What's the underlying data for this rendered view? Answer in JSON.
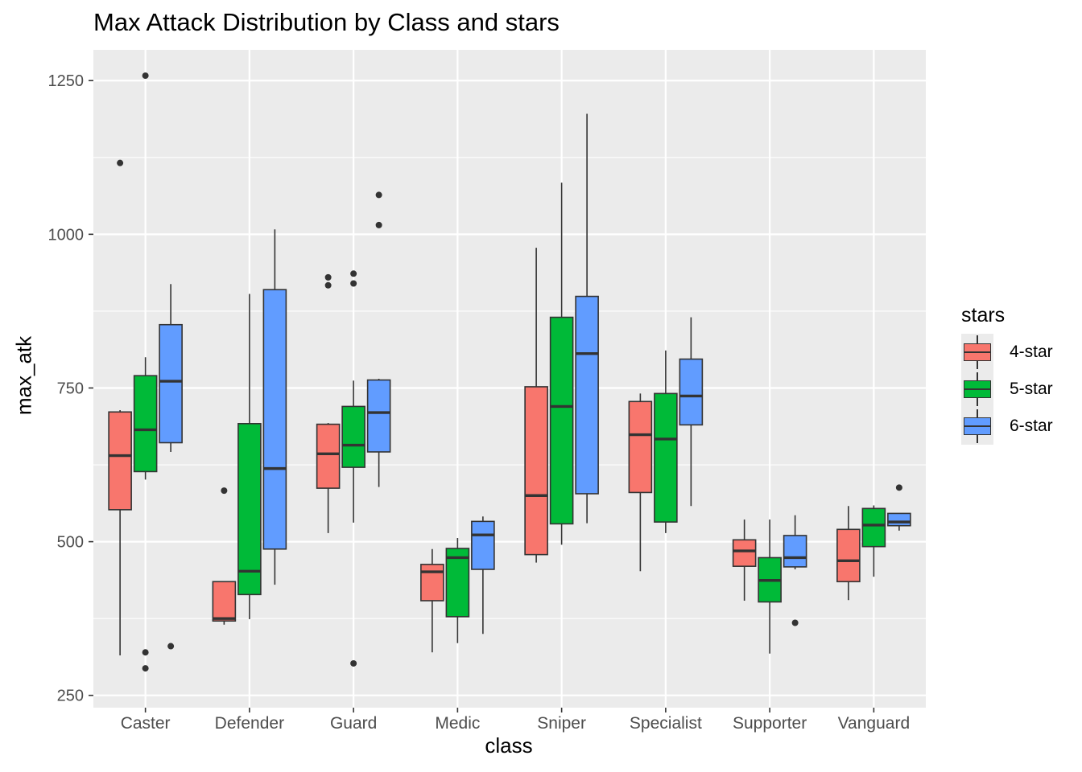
{
  "chart_data": {
    "type": "boxplot",
    "title": "Max Attack Distribution by Class and stars",
    "xlabel": "class",
    "ylabel": "max_atk",
    "ylim": [
      230,
      1300
    ],
    "yticks": [
      250,
      500,
      750,
      1000,
      1250
    ],
    "grid": true,
    "legend_position": "right",
    "legend_title": "stars",
    "categories": [
      "Caster",
      "Defender",
      "Guard",
      "Medic",
      "Sniper",
      "Specialist",
      "Supporter",
      "Vanguard"
    ],
    "series": [
      {
        "name": "4-star",
        "color": "#F8766D",
        "boxes": [
          {
            "class": "Caster",
            "lower_whisker": 315,
            "q1": 552,
            "median": 640,
            "q3": 711,
            "upper_whisker": 714,
            "outliers": [
              1116
            ]
          },
          {
            "class": "Defender",
            "lower_whisker": 365,
            "q1": 371,
            "median": 375,
            "q3": 435,
            "upper_whisker": 435,
            "outliers": [
              583
            ]
          },
          {
            "class": "Guard",
            "lower_whisker": 514,
            "q1": 587,
            "median": 643,
            "q3": 691,
            "upper_whisker": 693,
            "outliers": [
              917,
              930
            ]
          },
          {
            "class": "Medic",
            "lower_whisker": 320,
            "q1": 404,
            "median": 451,
            "q3": 463,
            "upper_whisker": 488,
            "outliers": []
          },
          {
            "class": "Sniper",
            "lower_whisker": 466,
            "q1": 479,
            "median": 575,
            "q3": 752,
            "upper_whisker": 978,
            "outliers": []
          },
          {
            "class": "Specialist",
            "lower_whisker": 452,
            "q1": 580,
            "median": 674,
            "q3": 728,
            "upper_whisker": 741,
            "outliers": []
          },
          {
            "class": "Supporter",
            "lower_whisker": 404,
            "q1": 460,
            "median": 485,
            "q3": 503,
            "upper_whisker": 536,
            "outliers": []
          },
          {
            "class": "Vanguard",
            "lower_whisker": 405,
            "q1": 435,
            "median": 469,
            "q3": 520,
            "upper_whisker": 558,
            "outliers": []
          }
        ]
      },
      {
        "name": "5-star",
        "color": "#00BA38",
        "boxes": [
          {
            "class": "Caster",
            "lower_whisker": 601,
            "q1": 614,
            "median": 682,
            "q3": 770,
            "upper_whisker": 800,
            "outliers": [
              1258,
              320,
              294
            ]
          },
          {
            "class": "Defender",
            "lower_whisker": 374,
            "q1": 414,
            "median": 452,
            "q3": 692,
            "upper_whisker": 903,
            "outliers": []
          },
          {
            "class": "Guard",
            "lower_whisker": 531,
            "q1": 621,
            "median": 657,
            "q3": 720,
            "upper_whisker": 762,
            "outliers": [
              936,
              920,
              302
            ]
          },
          {
            "class": "Medic",
            "lower_whisker": 335,
            "q1": 378,
            "median": 474,
            "q3": 489,
            "upper_whisker": 506,
            "outliers": []
          },
          {
            "class": "Sniper",
            "lower_whisker": 495,
            "q1": 529,
            "median": 720,
            "q3": 865,
            "upper_whisker": 1084,
            "outliers": []
          },
          {
            "class": "Specialist",
            "lower_whisker": 514,
            "q1": 532,
            "median": 667,
            "q3": 741,
            "upper_whisker": 811,
            "outliers": []
          },
          {
            "class": "Supporter",
            "lower_whisker": 318,
            "q1": 402,
            "median": 437,
            "q3": 474,
            "upper_whisker": 536,
            "outliers": []
          },
          {
            "class": "Vanguard",
            "lower_whisker": 443,
            "q1": 492,
            "median": 527,
            "q3": 554,
            "upper_whisker": 559,
            "outliers": []
          }
        ]
      },
      {
        "name": "6-star",
        "color": "#619CFF",
        "boxes": [
          {
            "class": "Caster",
            "lower_whisker": 646,
            "q1": 661,
            "median": 761,
            "q3": 853,
            "upper_whisker": 919,
            "outliers": [
              330
            ]
          },
          {
            "class": "Defender",
            "lower_whisker": 430,
            "q1": 488,
            "median": 619,
            "q3": 910,
            "upper_whisker": 1008,
            "outliers": []
          },
          {
            "class": "Guard",
            "lower_whisker": 589,
            "q1": 646,
            "median": 710,
            "q3": 763,
            "upper_whisker": 765,
            "outliers": [
              1064,
              1015
            ]
          },
          {
            "class": "Medic",
            "lower_whisker": 350,
            "q1": 455,
            "median": 511,
            "q3": 533,
            "upper_whisker": 541,
            "outliers": []
          },
          {
            "class": "Sniper",
            "lower_whisker": 530,
            "q1": 578,
            "median": 806,
            "q3": 899,
            "upper_whisker": 1196,
            "outliers": []
          },
          {
            "class": "Specialist",
            "lower_whisker": 558,
            "q1": 690,
            "median": 737,
            "q3": 797,
            "upper_whisker": 865,
            "outliers": []
          },
          {
            "class": "Supporter",
            "lower_whisker": 455,
            "q1": 459,
            "median": 474,
            "q3": 510,
            "upper_whisker": 543,
            "outliers": [
              368
            ]
          },
          {
            "class": "Vanguard",
            "lower_whisker": 518,
            "q1": 526,
            "median": 532,
            "q3": 546,
            "upper_whisker": 546,
            "outliers": [
              588
            ]
          }
        ]
      }
    ]
  }
}
